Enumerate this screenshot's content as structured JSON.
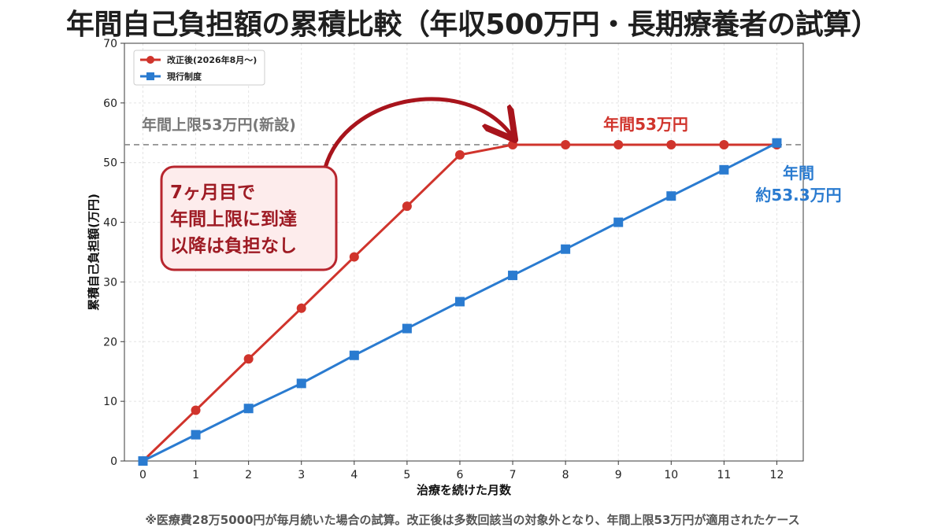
{
  "page_title": "年間自己負担額の累積比較（年収500万円・長期療養者の試算）",
  "footnote": "※医療費28万5000円が毎月続いた場合の試算。改正後は多数回該当の対象外となり、年間上限53万円が適用されたケース",
  "colors": {
    "reform": "#d0342c",
    "current": "#2a7bd0",
    "cap_line": "#888888",
    "cap_text": "#777777",
    "callout_border": "#b8262e",
    "callout_fill": "#fdecec",
    "arrow": "#a8141c"
  },
  "chart_data": {
    "type": "line",
    "xlabel": "治療を続けた月数",
    "ylabel": "累積自己負担額(万円)",
    "xlim": [
      -0.35,
      12.5
    ],
    "ylim": [
      0,
      70
    ],
    "x": [
      0,
      1,
      2,
      3,
      4,
      5,
      6,
      7,
      8,
      9,
      10,
      11,
      12
    ],
    "x_ticks": [
      0,
      1,
      2,
      3,
      4,
      5,
      6,
      7,
      8,
      9,
      10,
      11,
      12
    ],
    "y_ticks": [
      0,
      10,
      20,
      30,
      40,
      50,
      60,
      70
    ],
    "grid": true,
    "legend": "top-left",
    "series": [
      {
        "name": "改正後(2026年8月〜)",
        "marker": "circle",
        "color": "#d0342c",
        "values": [
          0,
          8.5,
          17.1,
          25.6,
          34.2,
          42.7,
          51.3,
          53,
          53,
          53,
          53,
          53,
          53
        ]
      },
      {
        "name": "現行制度",
        "marker": "square",
        "color": "#2a7bd0",
        "values": [
          0,
          4.4,
          8.8,
          13.0,
          17.7,
          22.2,
          26.7,
          31.1,
          35.5,
          40.0,
          44.4,
          48.8,
          53.3
        ]
      }
    ],
    "reference_line": {
      "value": 53,
      "label": "年間上限53万円(新設)"
    },
    "annotations": {
      "reform_total": "年間53万円",
      "current_total_line1": "年間",
      "current_total_line2": "約53.3万円",
      "callout_lines": [
        "7ヶ月目で",
        "年間上限に到達",
        "以降は負担なし"
      ]
    }
  }
}
